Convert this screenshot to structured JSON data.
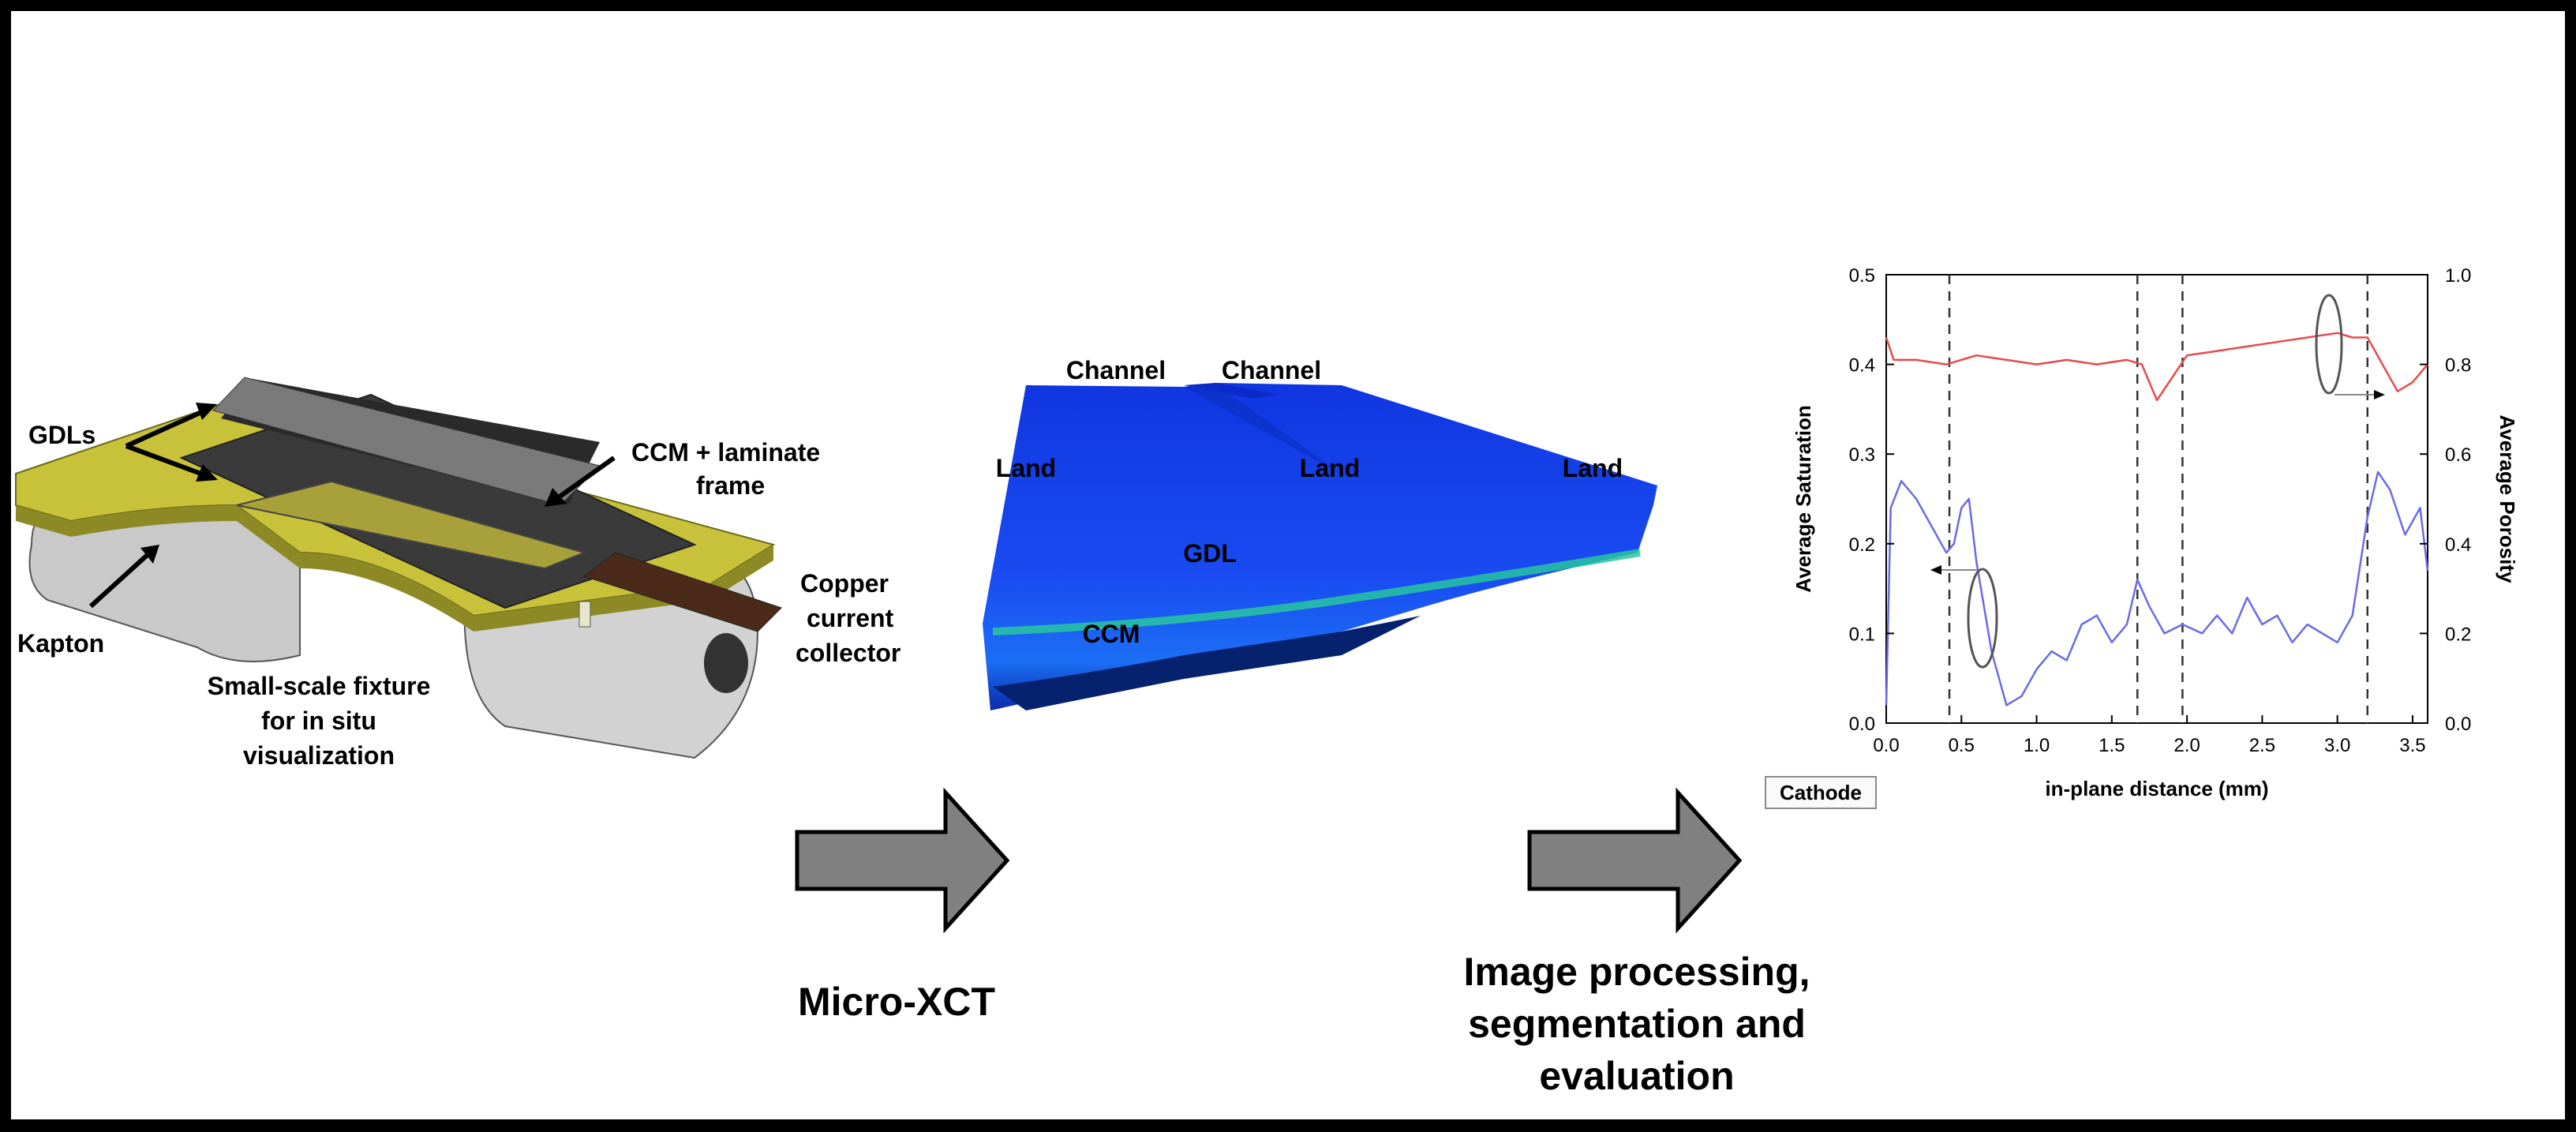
{
  "fixture": {
    "labels": {
      "gdls": "GDLs",
      "ccm_laminate": [
        "CCM + laminate",
        "frame"
      ],
      "copper": [
        "Copper",
        "current",
        "collector"
      ],
      "kapton": "Kapton",
      "fixture_caption": [
        "Small-scale fixture",
        "for in situ",
        "visualization"
      ]
    }
  },
  "xct": {
    "labels": {
      "channel_1": "Channel",
      "channel_2": "Channel",
      "land_1": "Land",
      "land_2": "Land",
      "land_3": "Land",
      "gdl": "GDL",
      "ccm": "CCM"
    }
  },
  "steps": {
    "micro_xct": "Micro-XCT",
    "processing": [
      "Image processing,",
      "segmentation and",
      "evaluation"
    ]
  },
  "chart_data": {
    "type": "line",
    "xlabel": "in-plane distance (mm)",
    "ylabel": "Average Saturation",
    "y2label": "Average Porosity",
    "xlim": [
      0.0,
      3.6
    ],
    "ylim": [
      0.0,
      0.5
    ],
    "y2lim": [
      0.0,
      1.0
    ],
    "xticks": [
      "0.0",
      "0.5",
      "1.0",
      "1.5",
      "2.0",
      "2.5",
      "3.0",
      "3.5"
    ],
    "yticks": [
      "0.0",
      "0.1",
      "0.2",
      "0.3",
      "0.4",
      "0.5"
    ],
    "y2ticks": [
      "0.0",
      "0.2",
      "0.4",
      "0.6",
      "0.8",
      "1.0"
    ],
    "vlines": [
      0.42,
      1.67,
      1.97,
      3.2
    ],
    "legend_button": "Cathode",
    "colors": {
      "saturation": "#6a6ae8",
      "porosity": "#e84a4a"
    },
    "series": [
      {
        "axis": "left",
        "x": [
          0.0,
          0.03,
          0.1,
          0.2,
          0.3,
          0.4,
          0.45,
          0.5,
          0.55,
          0.6,
          0.65,
          0.7,
          0.8,
          0.9,
          1.0,
          1.1,
          1.2,
          1.3,
          1.4,
          1.5,
          1.6,
          1.67,
          1.75,
          1.85,
          1.97,
          2.1,
          2.2,
          2.3,
          2.4,
          2.5,
          2.6,
          2.7,
          2.8,
          2.9,
          3.0,
          3.1,
          3.2,
          3.27,
          3.35,
          3.45,
          3.55,
          3.6
        ],
        "y": [
          0.02,
          0.24,
          0.27,
          0.25,
          0.22,
          0.19,
          0.2,
          0.24,
          0.25,
          0.18,
          0.13,
          0.08,
          0.02,
          0.03,
          0.06,
          0.08,
          0.07,
          0.11,
          0.12,
          0.09,
          0.11,
          0.16,
          0.13,
          0.1,
          0.11,
          0.1,
          0.12,
          0.1,
          0.14,
          0.11,
          0.12,
          0.09,
          0.11,
          0.1,
          0.09,
          0.12,
          0.23,
          0.28,
          0.26,
          0.21,
          0.24,
          0.17
        ]
      },
      {
        "axis": "right",
        "x": [
          0.0,
          0.05,
          0.2,
          0.4,
          0.6,
          0.8,
          1.0,
          1.2,
          1.4,
          1.6,
          1.7,
          1.8,
          1.9,
          2.0,
          2.2,
          2.4,
          2.6,
          2.8,
          3.0,
          3.1,
          3.2,
          3.3,
          3.4,
          3.5,
          3.6
        ],
        "y": [
          0.86,
          0.81,
          0.81,
          0.8,
          0.82,
          0.81,
          0.8,
          0.81,
          0.8,
          0.81,
          0.8,
          0.72,
          0.77,
          0.82,
          0.83,
          0.84,
          0.85,
          0.86,
          0.87,
          0.86,
          0.86,
          0.8,
          0.74,
          0.76,
          0.8
        ]
      }
    ]
  }
}
